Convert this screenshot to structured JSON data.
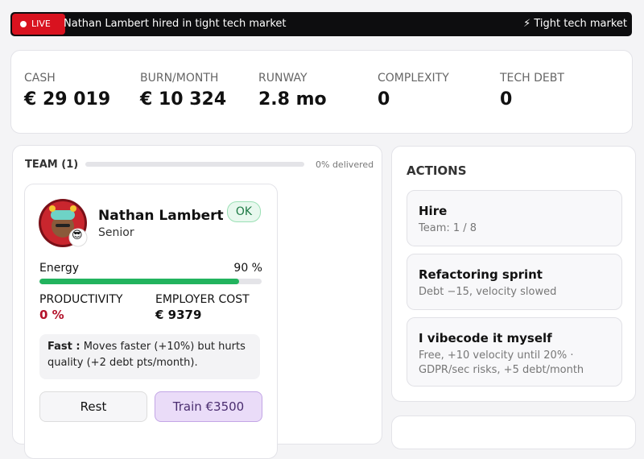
{
  "ticker": {
    "live": "LIVE",
    "headline": "Nathan Lambert hired in tight tech market",
    "tag": "⚡ Tight tech market"
  },
  "stats": [
    {
      "label": "CASH",
      "value": "€ 29 019"
    },
    {
      "label": "BURN/MONTH",
      "value": "€ 10 324"
    },
    {
      "label": "RUNWAY",
      "value": "2.8 mo"
    },
    {
      "label": "COMPLEXITY",
      "value": "0"
    },
    {
      "label": "TECH DEBT",
      "value": "0"
    }
  ],
  "team": {
    "title": "TEAM (1)",
    "delivered": 0,
    "delivered_label": "0% delivered",
    "member": {
      "name": "Nathan Lambert",
      "level": "Senior",
      "badge": "😎",
      "status": "OK",
      "energy_label": "Energy",
      "energy": 90,
      "energy_value_label": "90 %",
      "productivity_label": "PRODUCTIVITY",
      "productivity": "0 %",
      "cost_label": "EMPLOYER COST",
      "cost": "€ 9379",
      "trait_name": "Fast :",
      "trait_text": "Moves faster (+10%) but hurts quality (+2 debt pts/month).",
      "buttons": [
        "Rest",
        "Train €3500"
      ]
    }
  },
  "actions": {
    "title": "ACTIONS",
    "items": [
      {
        "title": "Hire",
        "detail": "Team: 1 / 8"
      },
      {
        "title": "Refactoring sprint",
        "detail": "Debt −15, velocity slowed"
      },
      {
        "title": "I vibecode it myself",
        "detail": "Free, +10 velocity until 20% · GDPR/sec risks, +5 debt/month"
      }
    ]
  }
}
